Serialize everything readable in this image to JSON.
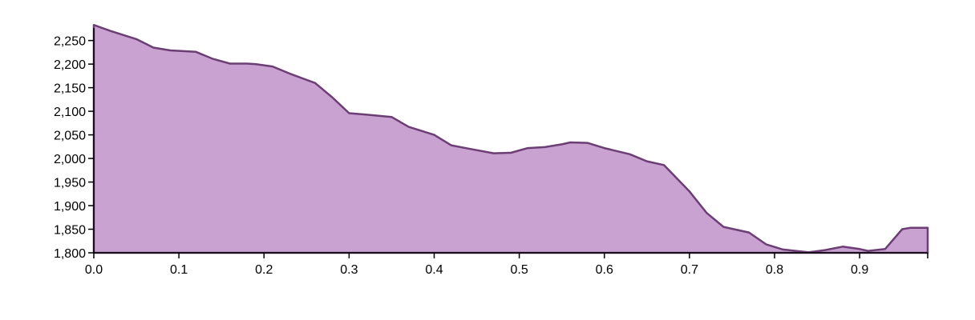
{
  "chart_data": {
    "type": "area",
    "title": "",
    "xlabel": "",
    "ylabel": "",
    "xlim": [
      0,
      0.98
    ],
    "ylim": [
      1800,
      2285
    ],
    "grid": false,
    "legend": "none",
    "colors": {
      "fill": "#c9a2d2",
      "stroke": "#6b3e74"
    },
    "x_ticks": [
      0.0,
      0.1,
      0.2,
      0.3,
      0.4,
      0.5,
      0.6,
      0.7,
      0.8,
      0.9
    ],
    "x_tick_labels": [
      "0.0",
      "0.1",
      "0.2",
      "0.3",
      "0.4",
      "0.5",
      "0.6",
      "0.7",
      "0.8",
      "0.9"
    ],
    "y_ticks": [
      1800,
      1850,
      1900,
      1950,
      2000,
      2050,
      2100,
      2150,
      2200,
      2250
    ],
    "y_tick_labels": [
      "1,800",
      "1,850",
      "1,900",
      "1,950",
      "2,000",
      "2,050",
      "2,100",
      "2,150",
      "2,200",
      "2,250"
    ],
    "series": [
      {
        "x": [
          0.0,
          0.02,
          0.05,
          0.07,
          0.09,
          0.12,
          0.14,
          0.16,
          0.18,
          0.19,
          0.21,
          0.23,
          0.26,
          0.28,
          0.3,
          0.32,
          0.35,
          0.37,
          0.4,
          0.42,
          0.44,
          0.47,
          0.49,
          0.51,
          0.53,
          0.55,
          0.56,
          0.58,
          0.6,
          0.63,
          0.65,
          0.67,
          0.7,
          0.72,
          0.74,
          0.77,
          0.79,
          0.81,
          0.84,
          0.86,
          0.88,
          0.9,
          0.91,
          0.93,
          0.95,
          0.96,
          0.98
        ],
        "y": [
          2283,
          2270,
          2253,
          2235,
          2229,
          2226,
          2211,
          2201,
          2201,
          2200,
          2195,
          2180,
          2160,
          2130,
          2096,
          2093,
          2088,
          2067,
          2050,
          2028,
          2021,
          2011,
          2012,
          2022,
          2024,
          2030,
          2034,
          2033,
          2022,
          2009,
          1994,
          1986,
          1930,
          1885,
          1855,
          1843,
          1818,
          1807,
          1801,
          1806,
          1813,
          1808,
          1804,
          1808,
          1850,
          1853,
          1853
        ]
      }
    ]
  }
}
